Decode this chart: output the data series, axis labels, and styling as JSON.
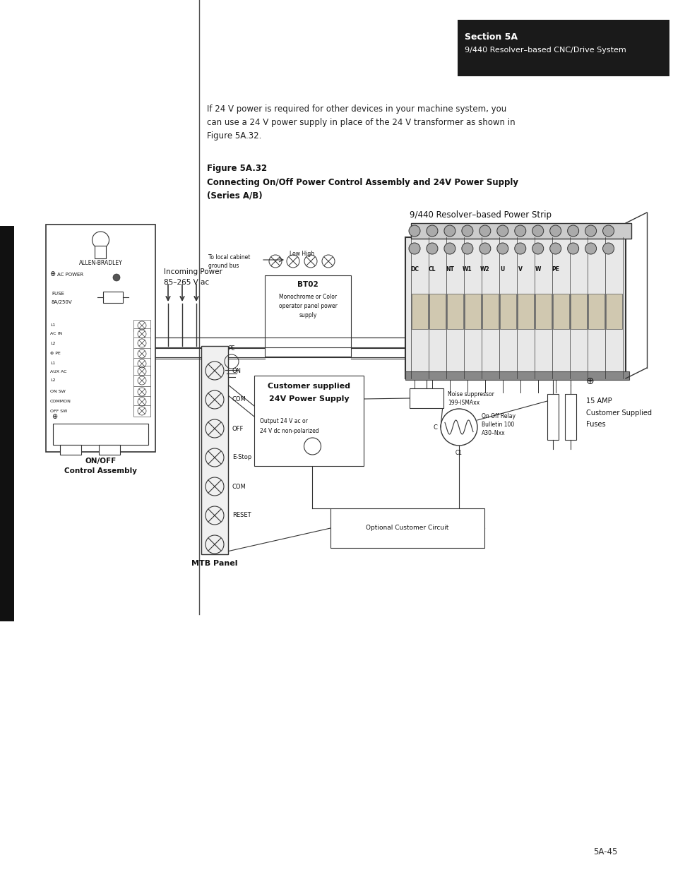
{
  "page_bg": "#ffffff",
  "header_bg": "#1a1a1a",
  "header_text1": "Section 5A",
  "header_text2": "9/440 Resolver–based CNC/Drive System",
  "body_text_line1": "If 24 V power is required for other devices in your machine system, you",
  "body_text_line2": "can use a 24 V power supply in place of the 24 V transformer as shown in",
  "body_text_line3": "Figure 5A.32.",
  "fig_caption1": "Figure 5A.32",
  "fig_caption2": "Connecting On/Off Power Control Assembly and 24V Power Supply",
  "fig_caption3": "(Series A/B)",
  "diagram_title": "9/440 Resolver–based Power Strip",
  "page_num": "5A-45",
  "lw": 0.8
}
